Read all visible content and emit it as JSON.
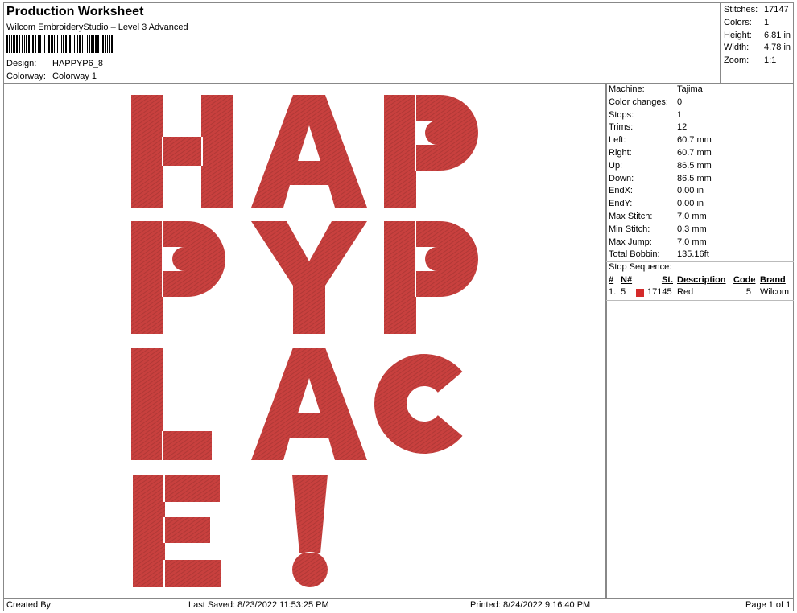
{
  "header": {
    "title": "Production Worksheet",
    "subtitle": "Wilcom EmbroideryStudio – Level 3 Advanced",
    "design_label": "Design:",
    "design_value": "HAPPYP6_8",
    "colorway_label": "Colorway:",
    "colorway_value": "Colorway 1"
  },
  "summary": [
    {
      "k": "Stitches:",
      "v": "17147"
    },
    {
      "k": "Colors:",
      "v": "1"
    },
    {
      "k": "Height:",
      "v": "6.81 in"
    },
    {
      "k": "Width:",
      "v": "4.78 in"
    },
    {
      "k": "Zoom:",
      "v": "1:1"
    }
  ],
  "details": [
    {
      "k": "Machine:",
      "v": "Tajima"
    },
    {
      "k": "Color changes:",
      "v": "0"
    },
    {
      "k": "Stops:",
      "v": "1"
    },
    {
      "k": "Trims:",
      "v": "12"
    },
    {
      "k": "Left:",
      "v": "60.7 mm"
    },
    {
      "k": "Right:",
      "v": "60.7 mm"
    },
    {
      "k": "Up:",
      "v": "86.5 mm"
    },
    {
      "k": "Down:",
      "v": "86.5 mm"
    },
    {
      "k": "EndX:",
      "v": "0.00 in"
    },
    {
      "k": "EndY:",
      "v": "0.00 in"
    },
    {
      "k": "Max Stitch:",
      "v": "7.0 mm"
    },
    {
      "k": "Min Stitch:",
      "v": "0.3 mm"
    },
    {
      "k": "Max Jump:",
      "v": "7.0 mm"
    },
    {
      "k": "Total Bobbin:",
      "v": "135.16ft"
    }
  ],
  "stop_sequence": {
    "title": "Stop Sequence:",
    "headers": [
      "#",
      "N#",
      "St.",
      "Description",
      "Code",
      "Brand"
    ],
    "rows": [
      {
        "num": "1.",
        "n": "5",
        "color": "#d42a2a",
        "st": "17145",
        "desc": "Red",
        "code": "5",
        "brand": "Wilcom"
      }
    ]
  },
  "design": {
    "thread_color": "#c8403e",
    "rows": [
      [
        "H",
        "A",
        "P"
      ],
      [
        "P",
        "Y",
        "P"
      ],
      [
        "L",
        "A",
        "C"
      ],
      [
        "E",
        "!"
      ]
    ]
  },
  "footer": {
    "created": "Created By:",
    "saved": "Last Saved: 8/23/2022 11:53:25 PM",
    "printed": "Printed: 8/24/2022 9:16:40 PM",
    "page": "Page 1 of 1"
  }
}
